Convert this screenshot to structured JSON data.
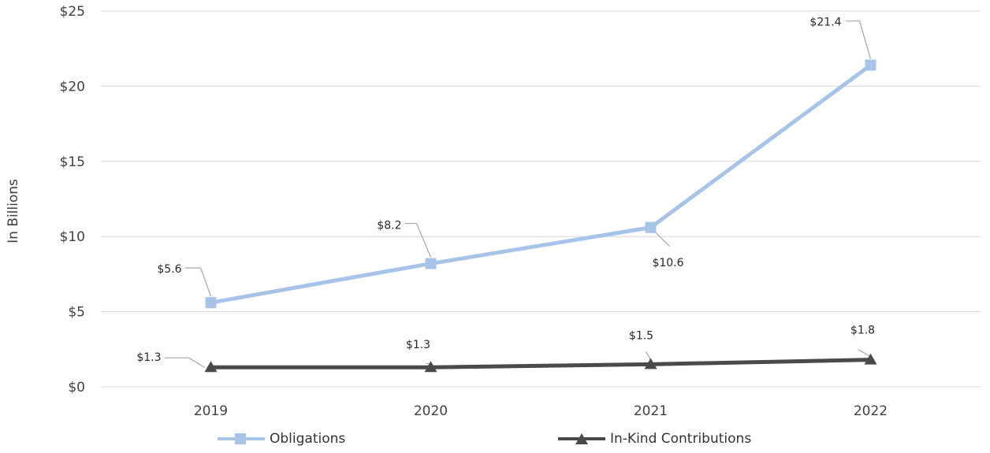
{
  "chart_data": {
    "type": "line",
    "categories": [
      "2019",
      "2020",
      "2021",
      "2022"
    ],
    "ylabel": "In Billions",
    "ylim": [
      0,
      25
    ],
    "yticks": [
      0,
      5,
      10,
      15,
      20,
      25
    ],
    "ytick_labels": [
      "$0",
      "$5",
      "$10",
      "$15",
      "$20",
      "$25"
    ],
    "grid": true,
    "legend_position": "bottom",
    "series": [
      {
        "name": "Obligations",
        "values": [
          5.6,
          8.2,
          10.6,
          21.4
        ],
        "labels": [
          "$5.6",
          "$8.2",
          "$10.6",
          "$21.4"
        ],
        "color": "#a7c4e8",
        "marker": "square"
      },
      {
        "name": "In-Kind Contributions",
        "values": [
          1.3,
          1.3,
          1.5,
          1.8
        ],
        "labels": [
          "$1.3",
          "$1.3",
          "$1.5",
          "$1.8"
        ],
        "color": "#4a4a4d",
        "marker": "triangle"
      }
    ]
  }
}
